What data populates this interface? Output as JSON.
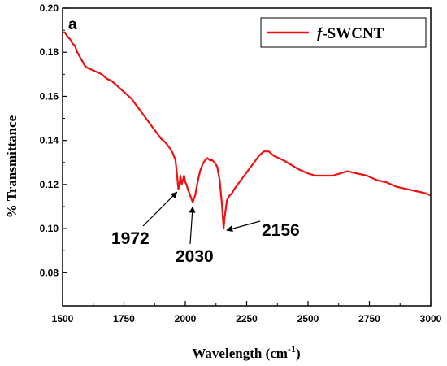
{
  "chart_data": {
    "type": "line",
    "panel_label": "a",
    "xlabel": "Wavelength (cm",
    "xlabel_sup": "-1",
    "xlabel_close": ")",
    "ylabel": "% Transmittance",
    "xlim": [
      1500,
      3000
    ],
    "ylim": [
      0.065,
      0.2
    ],
    "xticks": [
      1500,
      1750,
      2000,
      2250,
      2500,
      2750,
      3000
    ],
    "xtick_labels": [
      "1500",
      "1750",
      "2000",
      "2250",
      "2500",
      "2750",
      "3000"
    ],
    "yticks": [
      0.08,
      0.1,
      0.12,
      0.14,
      0.16,
      0.18,
      0.2
    ],
    "ytick_labels": [
      "0.08",
      "0.10",
      "0.12",
      "0.14",
      "0.16",
      "0.18",
      "0.20"
    ],
    "legend": {
      "placement": "top-right",
      "prefix": "f",
      "suffix": "-SWCNT"
    },
    "series": [
      {
        "name": "f-SWCNT",
        "color": "#ee1111",
        "points": [
          [
            1500,
            0.189
          ],
          [
            1510,
            0.189
          ],
          [
            1520,
            0.187
          ],
          [
            1530,
            0.186
          ],
          [
            1540,
            0.184
          ],
          [
            1550,
            0.183
          ],
          [
            1560,
            0.18
          ],
          [
            1570,
            0.178
          ],
          [
            1580,
            0.176
          ],
          [
            1590,
            0.174
          ],
          [
            1600,
            0.173
          ],
          [
            1620,
            0.172
          ],
          [
            1640,
            0.171
          ],
          [
            1660,
            0.17
          ],
          [
            1680,
            0.168
          ],
          [
            1700,
            0.167
          ],
          [
            1720,
            0.165
          ],
          [
            1740,
            0.163
          ],
          [
            1760,
            0.161
          ],
          [
            1780,
            0.159
          ],
          [
            1800,
            0.156
          ],
          [
            1820,
            0.153
          ],
          [
            1840,
            0.15
          ],
          [
            1860,
            0.147
          ],
          [
            1880,
            0.144
          ],
          [
            1900,
            0.141
          ],
          [
            1920,
            0.139
          ],
          [
            1940,
            0.136
          ],
          [
            1950,
            0.134
          ],
          [
            1960,
            0.131
          ],
          [
            1965,
            0.126
          ],
          [
            1970,
            0.12
          ],
          [
            1972,
            0.118
          ],
          [
            1975,
            0.119
          ],
          [
            1980,
            0.124
          ],
          [
            1985,
            0.12
          ],
          [
            1990,
            0.122
          ],
          [
            1995,
            0.124
          ],
          [
            2000,
            0.121
          ],
          [
            2005,
            0.12
          ],
          [
            2010,
            0.118
          ],
          [
            2020,
            0.115
          ],
          [
            2030,
            0.112
          ],
          [
            2040,
            0.115
          ],
          [
            2050,
            0.121
          ],
          [
            2060,
            0.126
          ],
          [
            2070,
            0.129
          ],
          [
            2080,
            0.131
          ],
          [
            2090,
            0.132
          ],
          [
            2100,
            0.131
          ],
          [
            2110,
            0.131
          ],
          [
            2120,
            0.13
          ],
          [
            2130,
            0.128
          ],
          [
            2140,
            0.122
          ],
          [
            2150,
            0.11
          ],
          [
            2156,
            0.1
          ],
          [
            2160,
            0.105
          ],
          [
            2170,
            0.113
          ],
          [
            2180,
            0.115
          ],
          [
            2190,
            0.116
          ],
          [
            2200,
            0.118
          ],
          [
            2220,
            0.121
          ],
          [
            2240,
            0.124
          ],
          [
            2260,
            0.127
          ],
          [
            2280,
            0.13
          ],
          [
            2300,
            0.133
          ],
          [
            2320,
            0.135
          ],
          [
            2340,
            0.135
          ],
          [
            2360,
            0.133
          ],
          [
            2380,
            0.132
          ],
          [
            2400,
            0.131
          ],
          [
            2430,
            0.129
          ],
          [
            2460,
            0.127
          ],
          [
            2500,
            0.125
          ],
          [
            2530,
            0.124
          ],
          [
            2560,
            0.124
          ],
          [
            2600,
            0.124
          ],
          [
            2630,
            0.125
          ],
          [
            2660,
            0.126
          ],
          [
            2700,
            0.125
          ],
          [
            2740,
            0.124
          ],
          [
            2780,
            0.122
          ],
          [
            2820,
            0.121
          ],
          [
            2860,
            0.119
          ],
          [
            2900,
            0.118
          ],
          [
            2940,
            0.117
          ],
          [
            2980,
            0.116
          ],
          [
            3000,
            0.115
          ]
        ]
      }
    ],
    "annotations": [
      {
        "text": "1972",
        "x": 1972,
        "y": 0.118
      },
      {
        "text": "2030",
        "x": 2030,
        "y": 0.112
      },
      {
        "text": "2156",
        "x": 2156,
        "y": 0.1
      }
    ]
  }
}
